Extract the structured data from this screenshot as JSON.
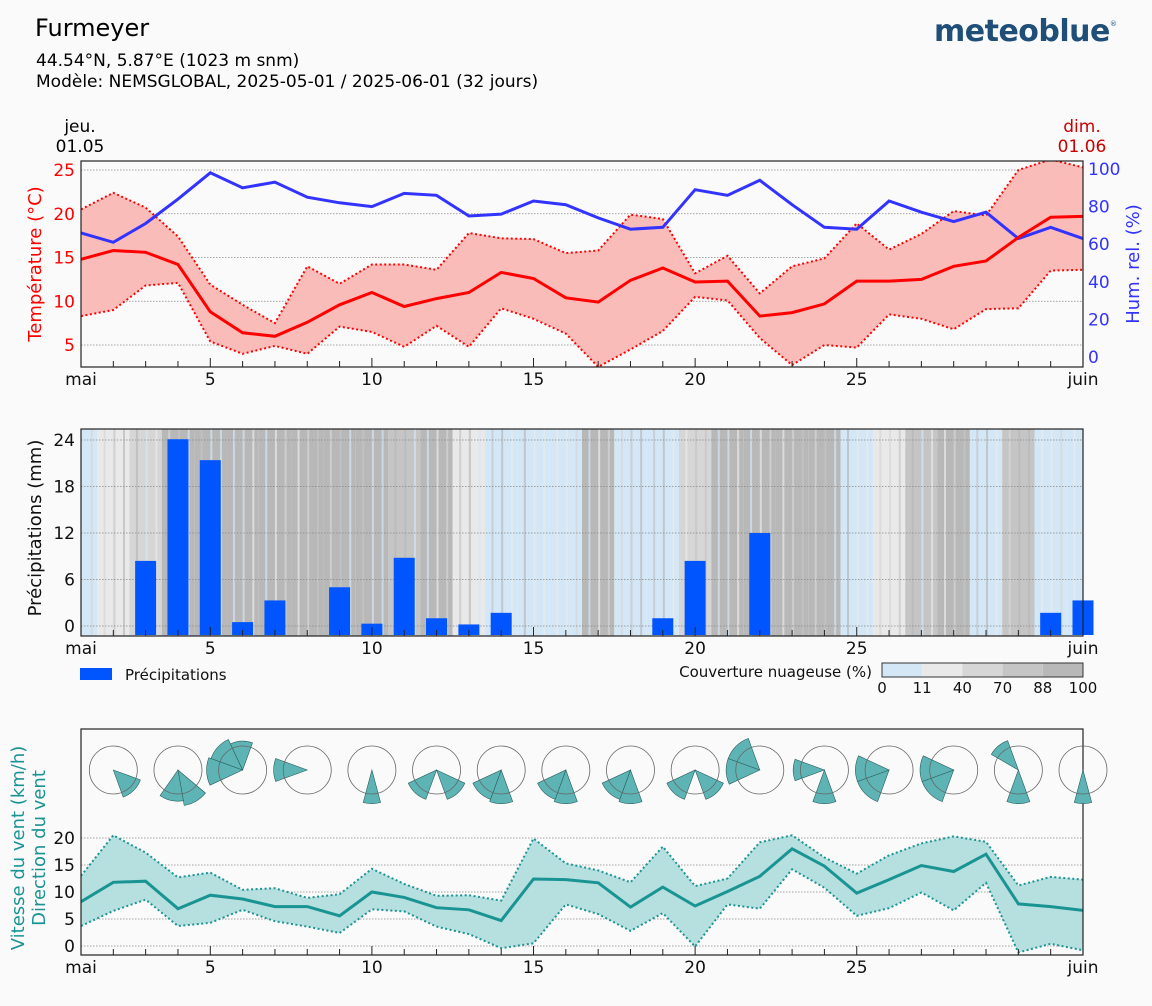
{
  "header": {
    "location": "Furmeyer",
    "coordinates": "44.54°N, 5.87°E (1023 m snm)",
    "model": "Modèle: NEMSGLOBAL, 2025-05-01 / 2025-06-01 (32 jours)",
    "logo": "meteoblue",
    "start_day": "jeu.",
    "start_date": "01.05",
    "end_day": "dim.",
    "end_date": "01.06"
  },
  "colors": {
    "temperature": "#ff0000",
    "temperature_band": "#f9bcb9",
    "humidity": "#3333ff",
    "precipitation": "#0055ff",
    "wind": "#1a9493",
    "wind_band": "#b6dfdf",
    "wind_rose": "#5eb4b4"
  },
  "x_ticks": [
    {
      "day": 1,
      "label": "mai"
    },
    {
      "day": 5,
      "label": "5"
    },
    {
      "day": 10,
      "label": "10"
    },
    {
      "day": 15,
      "label": "15"
    },
    {
      "day": 20,
      "label": "20"
    },
    {
      "day": 25,
      "label": "25"
    },
    {
      "day": 32,
      "label": "juin"
    }
  ],
  "chart_data": [
    {
      "type": "line",
      "title": "Température et humidité",
      "xlabel": "",
      "ylabel": "Température (°C)",
      "y2label": "Hum. rel. (%)",
      "ylim": [
        2.5,
        26
      ],
      "y2lim": [
        0,
        105
      ],
      "yticks": [
        5,
        10,
        15,
        20,
        25
      ],
      "y2ticks": [
        0,
        20,
        40,
        60,
        80,
        100
      ],
      "grid": true,
      "x": [
        1,
        2,
        3,
        4,
        5,
        6,
        7,
        8,
        9,
        10,
        11,
        12,
        13,
        14,
        15,
        16,
        17,
        18,
        19,
        20,
        21,
        22,
        23,
        24,
        25,
        26,
        27,
        28,
        29,
        30,
        31,
        32
      ],
      "series": [
        {
          "name": "Température moyenne",
          "axis": "left",
          "values": [
            14.8,
            15.8,
            15.6,
            14.2,
            8.8,
            6.4,
            6.0,
            7.6,
            9.6,
            11.0,
            9.4,
            10.3,
            11.0,
            13.3,
            12.6,
            10.4,
            9.9,
            12.4,
            13.8,
            12.2,
            12.3,
            8.3,
            8.7,
            9.7,
            12.3,
            12.3,
            12.5,
            14.0,
            14.6,
            17.3,
            19.6,
            19.7
          ]
        },
        {
          "name": "Température max",
          "axis": "left",
          "values": [
            20.5,
            22.4,
            20.7,
            17.4,
            11.9,
            9.6,
            7.5,
            14.0,
            12.0,
            14.2,
            14.2,
            13.6,
            17.8,
            17.2,
            17.1,
            15.5,
            15.8,
            19.9,
            19.4,
            13.2,
            15.2,
            10.9,
            14.0,
            14.9,
            18.9,
            15.9,
            17.7,
            20.3,
            19.8,
            25.0,
            26.2,
            25.3
          ]
        },
        {
          "name": "Température min",
          "axis": "left",
          "values": [
            8.3,
            9.0,
            11.8,
            12.1,
            5.4,
            4.0,
            4.9,
            4.0,
            7.1,
            6.5,
            4.8,
            7.2,
            4.8,
            9.2,
            8.0,
            6.3,
            2.5,
            4.5,
            6.6,
            10.5,
            10.1,
            5.8,
            2.7,
            5.0,
            4.7,
            8.5,
            8.0,
            6.8,
            9.1,
            9.2,
            13.5,
            13.6
          ]
        },
        {
          "name": "Humidité relative",
          "axis": "right",
          "values": [
            66,
            61,
            71,
            84,
            98,
            90,
            93,
            85,
            82,
            80,
            87,
            86,
            75,
            76,
            83,
            81,
            74,
            68,
            69,
            89,
            86,
            94,
            81,
            69,
            68,
            83,
            77,
            72,
            77,
            63,
            69,
            63
          ]
        }
      ]
    },
    {
      "type": "bar",
      "title": "Précipitations et couverture nuageuse",
      "ylabel": "Précipitations (mm)",
      "ylim": [
        -1.3,
        25.4
      ],
      "yticks": [
        0,
        6,
        12,
        18,
        24
      ],
      "grid": true,
      "x": [
        1,
        2,
        3,
        4,
        5,
        6,
        7,
        8,
        9,
        10,
        11,
        12,
        13,
        14,
        15,
        16,
        17,
        18,
        19,
        20,
        21,
        22,
        23,
        24,
        25,
        26,
        27,
        28,
        29,
        30,
        31,
        32
      ],
      "series": [
        {
          "name": "Précipitations",
          "values": [
            0,
            0,
            8.4,
            24.1,
            21.4,
            0.5,
            3.3,
            0,
            5.0,
            0.3,
            8.8,
            1.0,
            0.2,
            1.7,
            0,
            0,
            0,
            0,
            1.0,
            8.4,
            0,
            12.0,
            0,
            0,
            0,
            0,
            0,
            0,
            0,
            0,
            1.7,
            3.3
          ]
        }
      ],
      "legend": "Précipitations",
      "cloud_cover": {
        "label": "Couverture nuageuse (%)",
        "scale_ticks": [
          "0",
          "11",
          "40",
          "70",
          "88",
          "100"
        ],
        "scale_colors": [
          "#d3e7f7",
          "#e9e9e9",
          "#d6d6d6",
          "#c5c5c5",
          "#b8b8b8"
        ],
        "daily_class": [
          0,
          1,
          2,
          4,
          4,
          4,
          4,
          4,
          4,
          4,
          3,
          4,
          1,
          0,
          0,
          0,
          4,
          0,
          0,
          2,
          4,
          4,
          4,
          4,
          0,
          1,
          3,
          4,
          0,
          3,
          0,
          0
        ]
      }
    },
    {
      "type": "line",
      "title": "Vent",
      "ylabel": "Vitesse du vent (km/h)",
      "ylabel2": "Direction du vent",
      "ylim": [
        -1.5,
        20
      ],
      "yticks": [
        0,
        5,
        10,
        15,
        20
      ],
      "grid": true,
      "x": [
        1,
        2,
        3,
        4,
        5,
        6,
        7,
        8,
        9,
        10,
        11,
        12,
        13,
        14,
        15,
        16,
        17,
        18,
        19,
        20,
        21,
        22,
        23,
        24,
        25,
        26,
        27,
        28,
        29,
        30,
        31,
        32
      ],
      "series": [
        {
          "name": "Vitesse moyenne",
          "values": [
            8.2,
            11.8,
            12.0,
            6.9,
            9.4,
            8.7,
            7.3,
            7.3,
            5.6,
            10.0,
            9.0,
            7.1,
            6.7,
            4.7,
            12.4,
            12.3,
            11.7,
            7.2,
            10.9,
            7.4,
            10.1,
            12.9,
            18.0,
            14.8,
            9.8,
            12.3,
            14.9,
            13.8,
            17.0,
            7.8,
            7.3,
            6.6
          ]
        },
        {
          "name": "Vitesse max",
          "values": [
            13.0,
            20.5,
            17.3,
            12.7,
            13.6,
            10.4,
            10.7,
            8.9,
            9.6,
            14.3,
            11.5,
            9.3,
            9.4,
            8.4,
            19.9,
            15.3,
            14.0,
            11.8,
            18.4,
            11.1,
            12.5,
            19.2,
            20.5,
            16.4,
            13.4,
            16.8,
            19.0,
            20.3,
            19.3,
            11.2,
            12.8,
            12.3
          ]
        },
        {
          "name": "Vitesse min",
          "values": [
            3.7,
            6.5,
            8.6,
            3.7,
            4.3,
            6.7,
            4.6,
            3.6,
            2.4,
            6.8,
            6.4,
            3.6,
            2.2,
            -0.4,
            0.5,
            7.7,
            5.9,
            2.8,
            6.1,
            -0.1,
            7.7,
            6.9,
            14.2,
            10.8,
            5.6,
            7.0,
            9.9,
            6.6,
            11.7,
            -1.2,
            0.4,
            -0.8
          ]
        }
      ],
      "wind_roses": [
        {
          "day": 2,
          "sectors": [
            {
              "from": 110,
              "to": 160,
              "r": 1.2
            }
          ]
        },
        {
          "day": 4,
          "sectors": [
            {
              "from": 130,
              "to": 170,
              "r": 1.5
            },
            {
              "from": 170,
              "to": 215,
              "r": 1.3
            }
          ]
        },
        {
          "day": 6,
          "sectors": [
            {
              "from": 245,
              "to": 290,
              "r": 1.5
            },
            {
              "from": 290,
              "to": 335,
              "r": 1.4
            },
            {
              "from": 335,
              "to": 20,
              "r": 1.2
            }
          ]
        },
        {
          "day": 8,
          "sectors": [
            {
              "from": 250,
              "to": 290,
              "r": 1.4
            }
          ]
        },
        {
          "day": 10,
          "sectors": [
            {
              "from": 165,
              "to": 195,
              "r": 1.4
            }
          ]
        },
        {
          "day": 12,
          "sectors": [
            {
              "from": 200,
              "to": 245,
              "r": 1.3
            },
            {
              "from": 115,
              "to": 160,
              "r": 1.3
            }
          ]
        },
        {
          "day": 14,
          "sectors": [
            {
              "from": 160,
              "to": 200,
              "r": 1.4
            },
            {
              "from": 200,
              "to": 245,
              "r": 1.3
            }
          ]
        },
        {
          "day": 16,
          "sectors": [
            {
              "from": 160,
              "to": 200,
              "r": 1.4
            },
            {
              "from": 200,
              "to": 245,
              "r": 1.3
            }
          ]
        },
        {
          "day": 18,
          "sectors": [
            {
              "from": 160,
              "to": 200,
              "r": 1.4
            },
            {
              "from": 200,
              "to": 245,
              "r": 1.3
            }
          ]
        },
        {
          "day": 20,
          "sectors": [
            {
              "from": 200,
              "to": 245,
              "r": 1.3
            },
            {
              "from": 115,
              "to": 160,
              "r": 1.3
            }
          ]
        },
        {
          "day": 22,
          "sectors": [
            {
              "from": 245,
              "to": 290,
              "r": 1.4
            },
            {
              "from": 290,
              "to": 340,
              "r": 1.4
            }
          ]
        },
        {
          "day": 24,
          "sectors": [
            {
              "from": 250,
              "to": 290,
              "r": 1.3
            },
            {
              "from": 160,
              "to": 200,
              "r": 1.4
            }
          ]
        },
        {
          "day": 26,
          "sectors": [
            {
              "from": 200,
              "to": 250,
              "r": 1.4
            },
            {
              "from": 250,
              "to": 295,
              "r": 1.4
            }
          ]
        },
        {
          "day": 28,
          "sectors": [
            {
              "from": 200,
              "to": 250,
              "r": 1.4
            },
            {
              "from": 250,
              "to": 295,
              "r": 1.4
            }
          ]
        },
        {
          "day": 30,
          "sectors": [
            {
              "from": 160,
              "to": 200,
              "r": 1.4
            },
            {
              "from": 300,
              "to": 340,
              "r": 1.3
            }
          ]
        },
        {
          "day": 32,
          "sectors": [
            {
              "from": 165,
              "to": 195,
              "r": 1.4
            }
          ]
        }
      ]
    }
  ]
}
